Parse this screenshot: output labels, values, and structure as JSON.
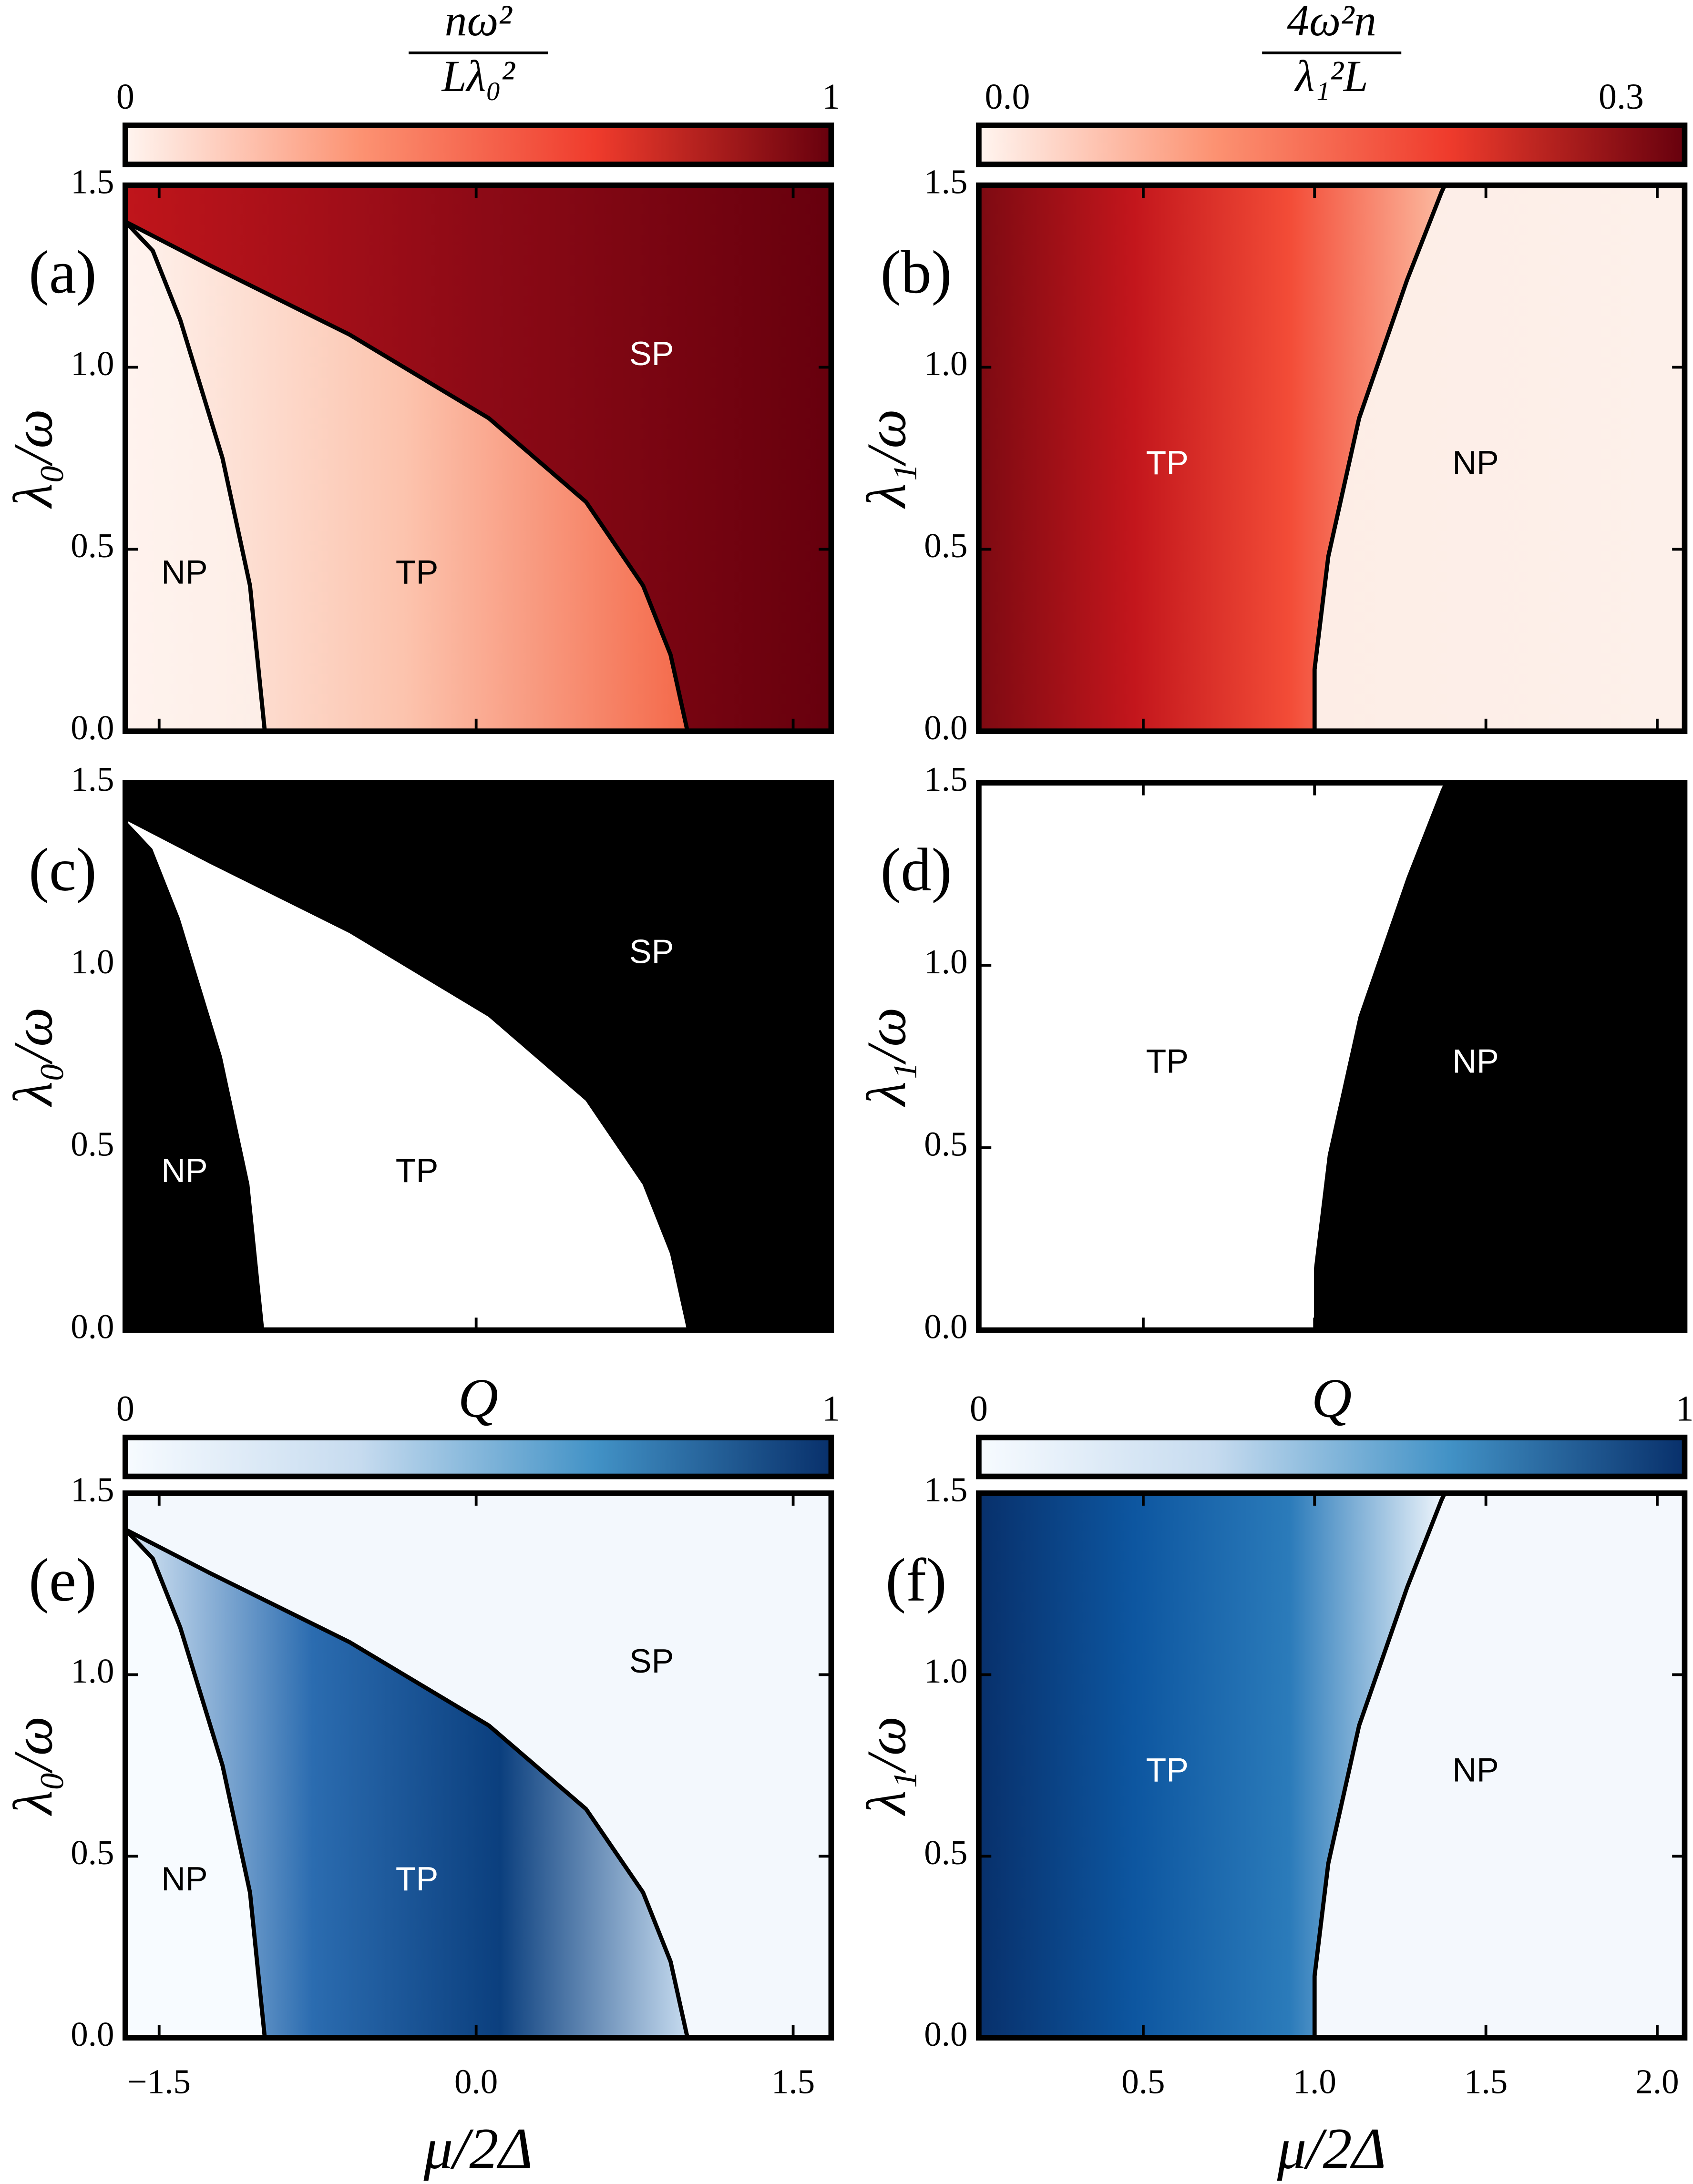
{
  "chart_data": [
    {
      "type": "phase",
      "panel_label": "(a)",
      "ylabel": "λ₀/ω",
      "xlim": [
        -1.66,
        1.68
      ],
      "ylim": [
        0,
        1.5
      ],
      "xticks": [
        -1.5,
        0,
        1.5
      ],
      "yticks": [
        {
          "value": 0,
          "label": "0.0"
        },
        {
          "value": 0.5,
          "label": "0.5"
        },
        {
          "value": 1,
          "label": "1.0"
        },
        {
          "value": 1.5,
          "label": "1.5"
        }
      ],
      "colorbar": {
        "label": {
          "numerator": "nω²",
          "denominator": "Lλ₀²"
        },
        "lim": [
          0,
          1
        ],
        "ticks": [
          0,
          1
        ],
        "colors": [
          "#fff5f0",
          "#fc9272",
          "#ef3b2c",
          "#67000d"
        ]
      },
      "regions": [
        {
          "name": "NP",
          "x": [
            -1.66,
            -1.53,
            -1.4,
            -1.2,
            -1.07,
            -1.0,
            -1.66
          ],
          "y": [
            1.4,
            1.32,
            1.13,
            0.75,
            0.4,
            0,
            0
          ],
          "fill": [
            "#fff3ee",
            "#fdeee7"
          ],
          "label_x": -1.38,
          "label_y": 0.43,
          "label_color": "#000000"
        },
        {
          "name": "TP",
          "x": [
            -1.66,
            -1.26,
            -0.6,
            0.06,
            0.52,
            0.79,
            0.92,
            1.0,
            -1.0,
            -1.07,
            -1.2,
            -1.4,
            -1.53
          ],
          "y": [
            1.4,
            1.28,
            1.09,
            0.86,
            0.63,
            0.4,
            0.21,
            0,
            0,
            0.4,
            0.75,
            1.13,
            1.32
          ],
          "fill": [
            "#fef3ee",
            "#fcc3ad",
            "#f4694a"
          ],
          "label_x": -0.28,
          "label_y": 0.43,
          "label_color": "#000000"
        },
        {
          "name": "SP",
          "x": [
            -1.66,
            -1.26,
            -0.6,
            0.06,
            0.52,
            0.79,
            0.92,
            1.0,
            1.68,
            1.68,
            -1.66
          ],
          "y": [
            1.4,
            1.28,
            1.09,
            0.86,
            0.63,
            0.4,
            0.21,
            0,
            0,
            1.5,
            1.5
          ],
          "fill": [
            "#c0151b",
            "#8d0a16",
            "#67000d"
          ],
          "label_x": 0.83,
          "label_y": 1.03,
          "label_color": "#ffffff"
        }
      ],
      "boundaries": [
        {
          "x": [
            -1.66,
            -1.53,
            -1.4,
            -1.2,
            -1.07,
            -1.0
          ],
          "y": [
            1.4,
            1.32,
            1.13,
            0.75,
            0.4,
            0
          ]
        },
        {
          "x": [
            -1.66,
            -1.26,
            -0.6,
            0.06,
            0.52,
            0.79,
            0.92,
            1.0
          ],
          "y": [
            1.4,
            1.28,
            1.09,
            0.86,
            0.63,
            0.4,
            0.21,
            0
          ]
        }
      ]
    },
    {
      "type": "phase",
      "panel_label": "(b)",
      "ylabel": "λ₁/ω",
      "xlim": [
        0.02,
        2.08
      ],
      "ylim": [
        0,
        1.5
      ],
      "xticks": [
        0.5,
        1,
        1.5,
        2
      ],
      "yticks": [
        {
          "value": 0,
          "label": "0.0"
        },
        {
          "value": 0.5,
          "label": "0.5"
        },
        {
          "value": 1,
          "label": "1.0"
        },
        {
          "value": 1.5,
          "label": "1.5"
        }
      ],
      "colorbar": {
        "label": {
          "numerator": "4ω²n",
          "denominator": "λ₁²L"
        },
        "lim": [
          -0.014,
          0.331
        ],
        "ticks": [
          {
            "value": 0,
            "label": "0.0"
          },
          {
            "value": 0.3,
            "label": "0.3"
          }
        ],
        "colors": [
          "#fff5f0",
          "#fc9272",
          "#ef3b2c",
          "#67000d"
        ]
      },
      "regions": [
        {
          "name": "TP",
          "x": [
            0.02,
            0.02,
            1.38,
            1.37,
            1.27,
            1.13,
            1.04,
            1.0,
            1.0
          ],
          "y": [
            0,
            1.5,
            1.5,
            1.48,
            1.24,
            0.86,
            0.48,
            0.17,
            0
          ],
          "fill": [
            "#7d0a12",
            "#c3161c",
            "#f34c37",
            "#fcbba1"
          ],
          "label_x": 0.57,
          "label_y": 0.73,
          "label_color": "#ffffff"
        },
        {
          "name": "NP",
          "x": [
            1.38,
            1.37,
            1.27,
            1.13,
            1.04,
            1.0,
            1.0,
            2.08,
            2.08
          ],
          "y": [
            1.5,
            1.48,
            1.24,
            0.86,
            0.48,
            0.17,
            0,
            0,
            1.5
          ],
          "fill": [
            "#fdede6",
            "#fdf0ea"
          ],
          "label_x": 1.47,
          "label_y": 0.73,
          "label_color": "#000000"
        }
      ],
      "boundaries": [
        {
          "x": [
            1.38,
            1.37,
            1.27,
            1.13,
            1.04,
            1.0,
            1.0
          ],
          "y": [
            1.5,
            1.48,
            1.24,
            0.86,
            0.48,
            0.17,
            0
          ]
        }
      ]
    },
    {
      "type": "phase",
      "panel_label": "(c)",
      "ylabel": "λ₀/ω",
      "xlim": [
        -1.66,
        1.68
      ],
      "ylim": [
        0,
        1.5
      ],
      "xticks": [
        -1.5,
        0,
        1.5
      ],
      "yticks": [
        {
          "value": 0,
          "label": "0.0"
        },
        {
          "value": 0.5,
          "label": "0.5"
        },
        {
          "value": 1,
          "label": "1.0"
        },
        {
          "value": 1.5,
          "label": "1.5"
        }
      ],
      "regions": [
        {
          "name": "NP",
          "x": [
            -1.66,
            -1.53,
            -1.4,
            -1.2,
            -1.07,
            -1.0,
            -1.66
          ],
          "y": [
            1.4,
            1.32,
            1.13,
            0.75,
            0.4,
            0,
            0
          ],
          "fill": [
            "#000000"
          ],
          "label_x": -1.38,
          "label_y": 0.43,
          "label_color": "#ffffff"
        },
        {
          "name": "TP",
          "x": [
            -1.66,
            -1.26,
            -0.6,
            0.06,
            0.52,
            0.79,
            0.92,
            1.0,
            -1.0,
            -1.07,
            -1.2,
            -1.4,
            -1.53
          ],
          "y": [
            1.4,
            1.28,
            1.09,
            0.86,
            0.63,
            0.4,
            0.21,
            0,
            0,
            0.4,
            0.75,
            1.13,
            1.32
          ],
          "fill": [
            "#ffffff"
          ],
          "label_x": -0.28,
          "label_y": 0.43,
          "label_color": "#000000"
        },
        {
          "name": "SP",
          "x": [
            -1.66,
            -1.26,
            -0.6,
            0.06,
            0.52,
            0.79,
            0.92,
            1.0,
            1.68,
            1.68,
            -1.66
          ],
          "y": [
            1.4,
            1.28,
            1.09,
            0.86,
            0.63,
            0.4,
            0.21,
            0,
            0,
            1.5,
            1.5
          ],
          "fill": [
            "#000000"
          ],
          "label_x": 0.83,
          "label_y": 1.03,
          "label_color": "#ffffff"
        }
      ],
      "boundaries": []
    },
    {
      "type": "phase",
      "panel_label": "(d)",
      "ylabel": "λ₁/ω",
      "xlim": [
        0.02,
        2.08
      ],
      "ylim": [
        0,
        1.5
      ],
      "xticks": [
        0.5,
        1,
        1.5,
        2
      ],
      "yticks": [
        {
          "value": 0,
          "label": "0.0"
        },
        {
          "value": 0.5,
          "label": "0.5"
        },
        {
          "value": 1,
          "label": "1.0"
        },
        {
          "value": 1.5,
          "label": "1.5"
        }
      ],
      "regions": [
        {
          "name": "TP",
          "x": [
            0.02,
            0.02,
            1.38,
            1.37,
            1.27,
            1.13,
            1.04,
            1.0,
            1.0
          ],
          "y": [
            0,
            1.5,
            1.5,
            1.48,
            1.24,
            0.86,
            0.48,
            0.17,
            0
          ],
          "fill": [
            "#ffffff"
          ],
          "label_x": 0.57,
          "label_y": 0.73,
          "label_color": "#000000"
        },
        {
          "name": "NP",
          "x": [
            1.38,
            1.37,
            1.27,
            1.13,
            1.04,
            1.0,
            1.0,
            2.08,
            2.08
          ],
          "y": [
            1.5,
            1.48,
            1.24,
            0.86,
            0.48,
            0.17,
            0,
            0,
            1.5
          ],
          "fill": [
            "#000000"
          ],
          "label_x": 1.47,
          "label_y": 0.73,
          "label_color": "#ffffff"
        }
      ],
      "boundaries": []
    },
    {
      "type": "phase",
      "panel_label": "(e)",
      "ylabel": "λ₀/ω",
      "xlabel": "μ/2Δ",
      "xlim": [
        -1.66,
        1.68
      ],
      "ylim": [
        0,
        1.5
      ],
      "xticks": [
        {
          "value": -1.5,
          "label": "−1.5"
        },
        {
          "value": 0,
          "label": "0.0"
        },
        {
          "value": 1.5,
          "label": "1.5"
        }
      ],
      "yticks": [
        {
          "value": 0,
          "label": "0.0"
        },
        {
          "value": 0.5,
          "label": "0.5"
        },
        {
          "value": 1,
          "label": "1.0"
        },
        {
          "value": 1.5,
          "label": "1.5"
        }
      ],
      "colorbar": {
        "label": "Q",
        "lim": [
          0,
          1
        ],
        "ticks": [
          0,
          1
        ],
        "colors": [
          "#f7fbff",
          "#c6dbef",
          "#4292c6",
          "#08306b"
        ]
      },
      "regions": [
        {
          "name": "NP",
          "x": [
            -1.66,
            -1.53,
            -1.4,
            -1.2,
            -1.07,
            -1.0,
            -1.66
          ],
          "y": [
            1.4,
            1.32,
            1.13,
            0.75,
            0.4,
            0,
            0
          ],
          "fill": [
            "#f7fbff"
          ],
          "label_x": -1.38,
          "label_y": 0.43,
          "label_color": "#000000"
        },
        {
          "name": "TP",
          "x": [
            -1.66,
            -1.26,
            -0.6,
            0.06,
            0.52,
            0.79,
            0.92,
            1.0,
            -1.0,
            -1.07,
            -1.2,
            -1.4,
            -1.53
          ],
          "y": [
            1.4,
            1.28,
            1.09,
            0.86,
            0.63,
            0.4,
            0.21,
            0,
            0,
            0.4,
            0.75,
            1.13,
            1.32
          ],
          "fill": [
            "#dbe9f6",
            "#2b6cb0",
            "#0b3f7e",
            "#c6dbef"
          ],
          "label_x": -0.28,
          "label_y": 0.43,
          "label_color": "#ffffff"
        },
        {
          "name": "SP",
          "x": [
            -1.66,
            -1.26,
            -0.6,
            0.06,
            0.52,
            0.79,
            0.92,
            1.0,
            1.68,
            1.68,
            -1.66
          ],
          "y": [
            1.4,
            1.28,
            1.09,
            0.86,
            0.63,
            0.4,
            0.21,
            0,
            0,
            1.5,
            1.5
          ],
          "fill": [
            "#f3f8fd"
          ],
          "label_x": 0.83,
          "label_y": 1.03,
          "label_color": "#000000"
        }
      ],
      "boundaries": [
        {
          "x": [
            -1.66,
            -1.53,
            -1.4,
            -1.2,
            -1.07,
            -1.0
          ],
          "y": [
            1.4,
            1.32,
            1.13,
            0.75,
            0.4,
            0
          ]
        },
        {
          "x": [
            -1.66,
            -1.26,
            -0.6,
            0.06,
            0.52,
            0.79,
            0.92,
            1.0
          ],
          "y": [
            1.4,
            1.28,
            1.09,
            0.86,
            0.63,
            0.4,
            0.21,
            0
          ]
        }
      ]
    },
    {
      "type": "phase",
      "panel_label": "(f)",
      "ylabel": "λ₁/ω",
      "xlabel": "μ/2Δ",
      "xlim": [
        0.02,
        2.08
      ],
      "ylim": [
        0,
        1.5
      ],
      "xticks": [
        0.5,
        {
          "value": 1,
          "label": "1.0"
        },
        1.5,
        {
          "value": 2,
          "label": "2.0"
        }
      ],
      "yticks": [
        {
          "value": 0,
          "label": "0.0"
        },
        {
          "value": 0.5,
          "label": "0.5"
        },
        {
          "value": 1,
          "label": "1.0"
        },
        {
          "value": 1.5,
          "label": "1.5"
        }
      ],
      "colorbar": {
        "label": "Q",
        "lim": [
          0,
          1
        ],
        "ticks": [
          0,
          1
        ],
        "colors": [
          "#f7fbff",
          "#c6dbef",
          "#4292c6",
          "#08306b"
        ]
      },
      "regions": [
        {
          "name": "TP",
          "x": [
            0.02,
            0.02,
            1.38,
            1.37,
            1.27,
            1.13,
            1.04,
            1.0,
            1.0
          ],
          "y": [
            0,
            1.5,
            1.5,
            1.48,
            1.24,
            0.86,
            0.48,
            0.17,
            0
          ],
          "fill": [
            "#08306b",
            "#0d56a0",
            "#2b7bba",
            "#f0f6fc"
          ],
          "label_x": 0.57,
          "label_y": 0.73,
          "label_color": "#ffffff"
        },
        {
          "name": "NP",
          "x": [
            1.38,
            1.37,
            1.27,
            1.13,
            1.04,
            1.0,
            1.0,
            2.08,
            2.08
          ],
          "y": [
            1.5,
            1.48,
            1.24,
            0.86,
            0.48,
            0.17,
            0,
            0,
            1.5
          ],
          "fill": [
            "#f4f8fd"
          ],
          "label_x": 1.47,
          "label_y": 0.73,
          "label_color": "#000000"
        }
      ],
      "boundaries": [
        {
          "x": [
            1.38,
            1.37,
            1.27,
            1.13,
            1.04,
            1.0,
            1.0
          ],
          "y": [
            1.5,
            1.48,
            1.24,
            0.86,
            0.48,
            0.17,
            0
          ]
        }
      ]
    }
  ]
}
